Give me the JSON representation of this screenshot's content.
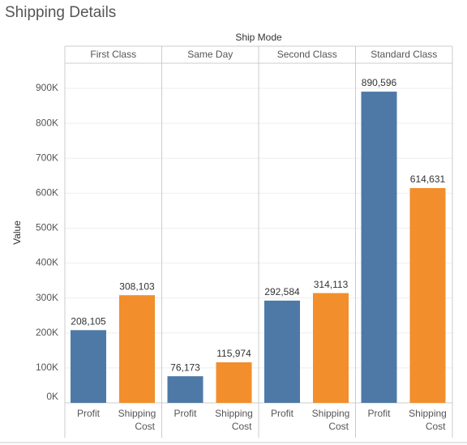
{
  "chart_data": {
    "type": "bar",
    "title": "Shipping Details",
    "header": "Ship Mode",
    "y_label": "Value",
    "categories": [
      "First Class",
      "Same Day",
      "Second Class",
      "Standard Class"
    ],
    "series": [
      {
        "name": "Profit",
        "color": "#4e79a7",
        "values": [
          208105,
          76173,
          292584,
          890596
        ],
        "value_labels": [
          "208,105",
          "76,173",
          "292,584",
          "890,596"
        ]
      },
      {
        "name": "Shipping Cost",
        "color": "#f28e2b",
        "values": [
          308103,
          115974,
          314113,
          614631
        ],
        "value_labels": [
          "308,103",
          "115,974",
          "314,113",
          "614,631"
        ]
      }
    ],
    "ylim": [
      0,
      965000
    ],
    "yticks": [
      {
        "value": 0,
        "label": "0K"
      },
      {
        "value": 100000,
        "label": "100K"
      },
      {
        "value": 200000,
        "label": "200K"
      },
      {
        "value": 300000,
        "label": "300K"
      },
      {
        "value": 400000,
        "label": "400K"
      },
      {
        "value": 500000,
        "label": "500K"
      },
      {
        "value": 600000,
        "label": "600K"
      },
      {
        "value": 700000,
        "label": "700K"
      },
      {
        "value": 800000,
        "label": "800K"
      },
      {
        "value": 900000,
        "label": "900K"
      }
    ],
    "grid": true
  }
}
